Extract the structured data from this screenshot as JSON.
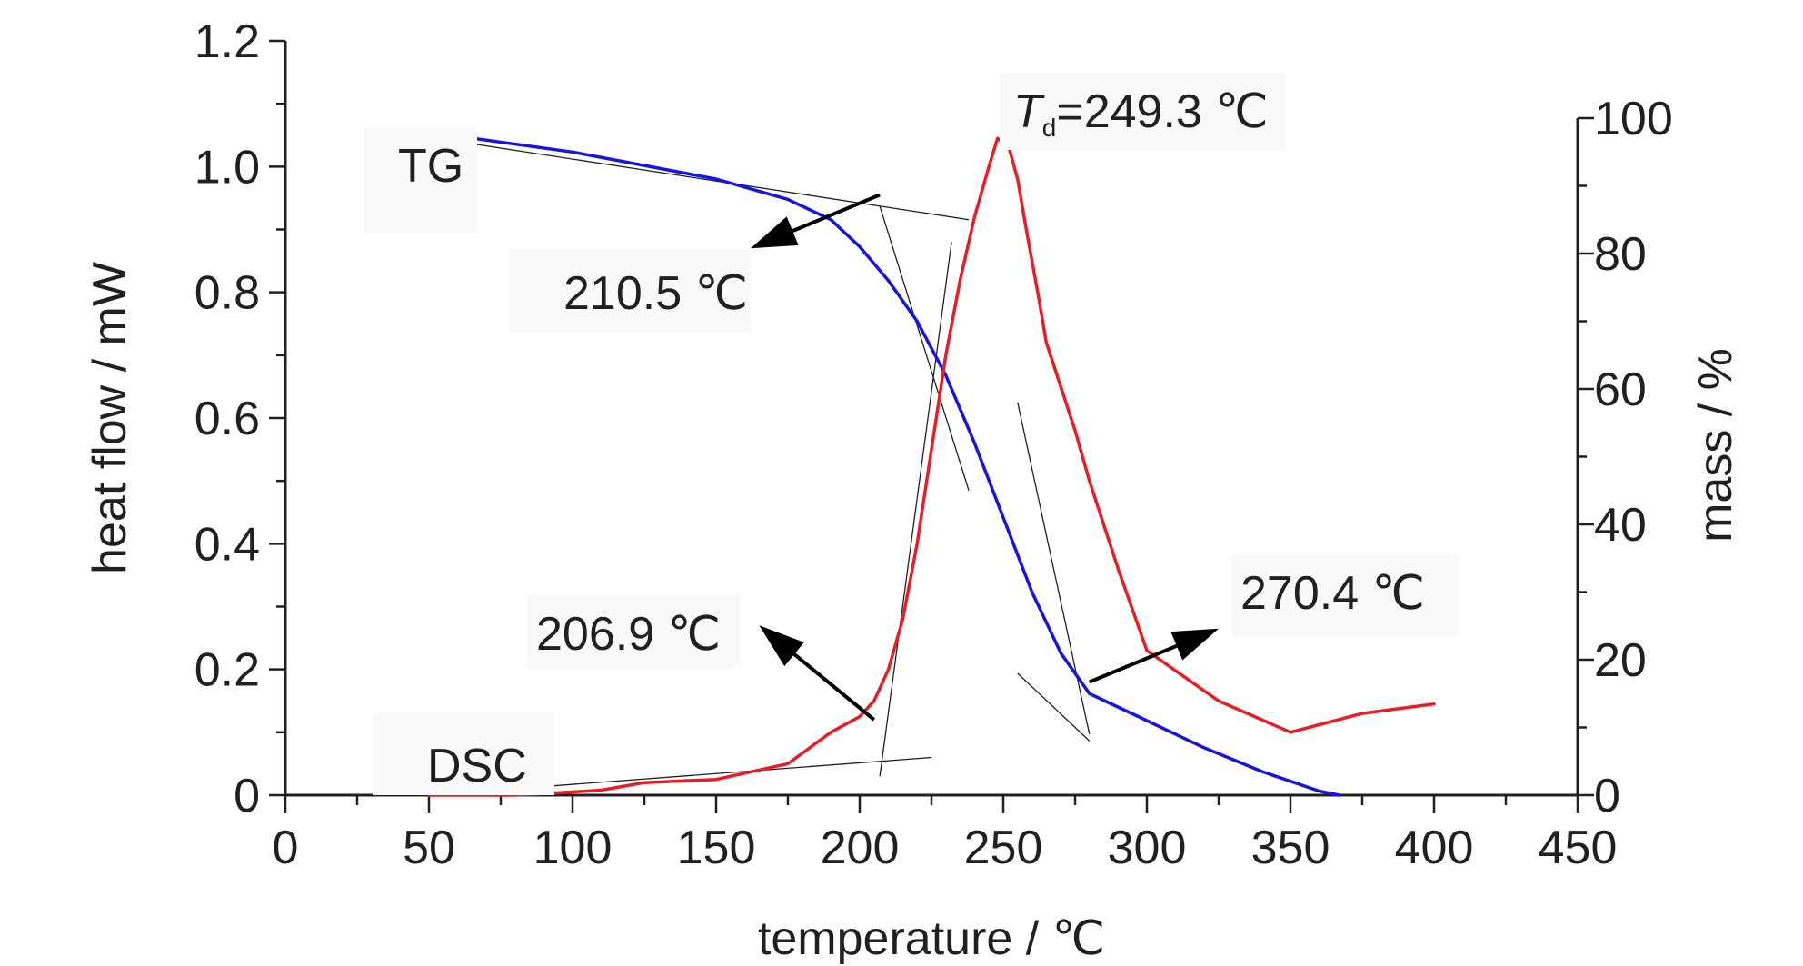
{
  "chart_data": {
    "type": "line",
    "xlabel": "temperature / ℃",
    "ylabel_left": "heat flow / mW",
    "ylabel_right": "mass / %",
    "xlim": [
      0,
      450
    ],
    "ylim_left": [
      0,
      1.2
    ],
    "ylim_right": [
      0,
      100
    ],
    "x_ticks": [
      "0",
      "50",
      "100",
      "150",
      "200",
      "250",
      "300",
      "350",
      "400",
      "450"
    ],
    "y_left_ticks": [
      "0",
      "0.2",
      "0.4",
      "0.6",
      "0.8",
      "1.0",
      "1.2"
    ],
    "y_right_ticks": [
      "0",
      "20",
      "40",
      "60",
      "80",
      "100"
    ],
    "grid": false,
    "series": [
      {
        "name": "TG",
        "axis": "right",
        "color": "#1515e0",
        "x": [
          57,
          100,
          125,
          150,
          175,
          190,
          200,
          210,
          220,
          230,
          240,
          250,
          260,
          270,
          280,
          300,
          320,
          340,
          360,
          367
        ],
        "values": [
          97.5,
          95,
          93,
          91,
          88,
          85,
          81,
          76,
          70,
          62,
          52,
          41,
          30,
          21,
          15,
          11,
          7,
          3.5,
          0.6,
          0
        ]
      },
      {
        "name": "DSC",
        "axis": "left",
        "color": "#ea1c24",
        "x": [
          50,
          80,
          100,
          110,
          125,
          150,
          160,
          175,
          190,
          200,
          205,
          210,
          215,
          220,
          225,
          230,
          235,
          240,
          245,
          248,
          252,
          255,
          258,
          262,
          265,
          270,
          275,
          280,
          290,
          300,
          325,
          350,
          375,
          400
        ],
        "values": [
          0,
          0,
          0.005,
          0.008,
          0.02,
          0.025,
          0.035,
          0.05,
          0.1,
          0.125,
          0.15,
          0.2,
          0.28,
          0.4,
          0.55,
          0.7,
          0.82,
          0.92,
          1.0,
          1.045,
          1.03,
          0.98,
          0.9,
          0.8,
          0.72,
          0.65,
          0.58,
          0.5,
          0.36,
          0.23,
          0.15,
          0.1,
          0.13,
          0.145
        ]
      }
    ],
    "tangents": [
      {
        "x": [
          53,
          238
        ],
        "y_right": [
          97,
          85
        ]
      },
      {
        "x": [
          207,
          238
        ],
        "y_right": [
          87,
          45
        ]
      },
      {
        "x": [
          50,
          225
        ],
        "y_left": [
          0,
          0.06
        ]
      },
      {
        "x": [
          207,
          232
        ],
        "y_left": [
          0.03,
          0.88
        ]
      },
      {
        "x": [
          255,
          280
        ],
        "y_right": [
          18,
          8
        ]
      },
      {
        "x": [
          255,
          280
        ],
        "y_right": [
          58,
          9
        ]
      }
    ],
    "annotations": [
      {
        "label": "TG"
      },
      {
        "label": "DSC"
      },
      {
        "label": "210.5 ℃",
        "arrow_from": [
          207,
          0.955
        ],
        "arrow_to": [
          162,
          0.87
        ]
      },
      {
        "label": "206.9 ℃",
        "arrow_from": [
          205,
          0.12
        ],
        "arrow_to": [
          165,
          0.27
        ]
      },
      {
        "label": "270.4 ℃",
        "arrow_from": [
          280,
          0.18
        ],
        "arrow_to": [
          325,
          0.265
        ]
      },
      {
        "label_italic": "T",
        "label_sub": "d",
        "label_rest": "=249.3 ℃"
      }
    ]
  }
}
